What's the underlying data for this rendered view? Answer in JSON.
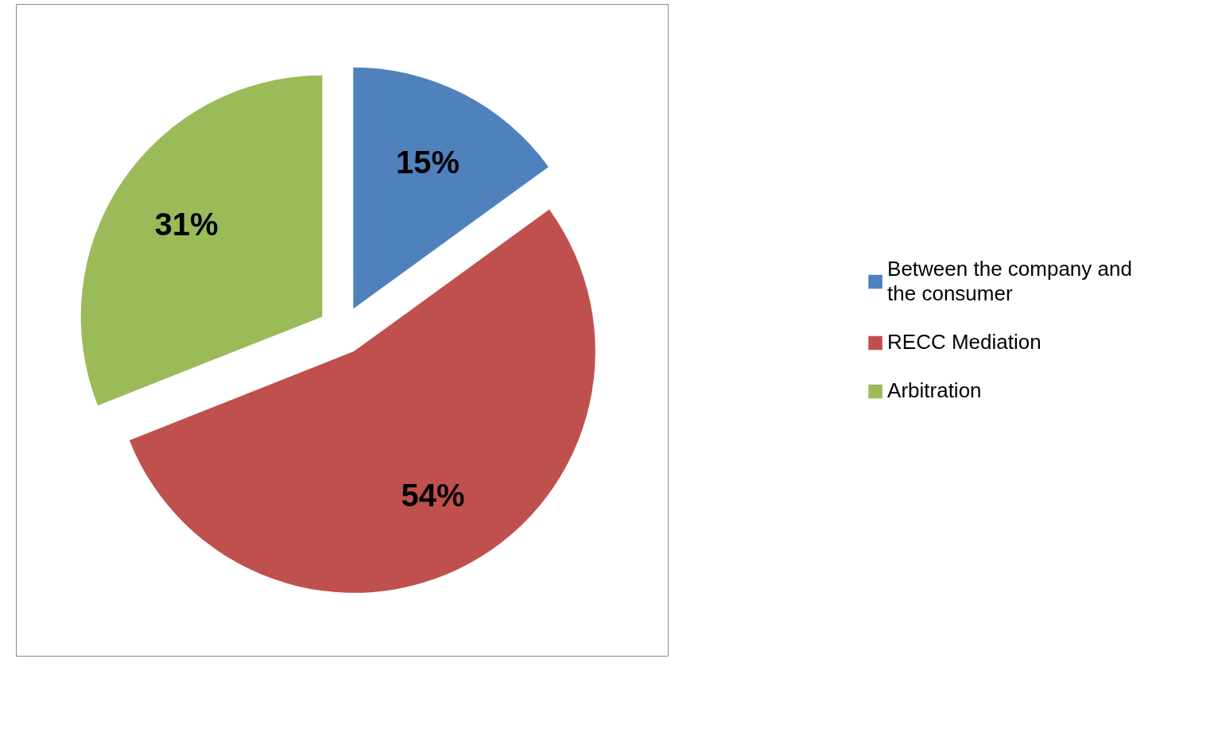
{
  "chart_data": {
    "type": "pie",
    "categories": [
      "Between the company and the consumer",
      "RECC Mediation",
      "Arbitration"
    ],
    "values": [
      15,
      54,
      31
    ],
    "colors": [
      "#4f81bd",
      "#c0504d",
      "#9bbb59"
    ],
    "value_labels": [
      "15%",
      "54%",
      "31%"
    ],
    "legend": "right"
  }
}
